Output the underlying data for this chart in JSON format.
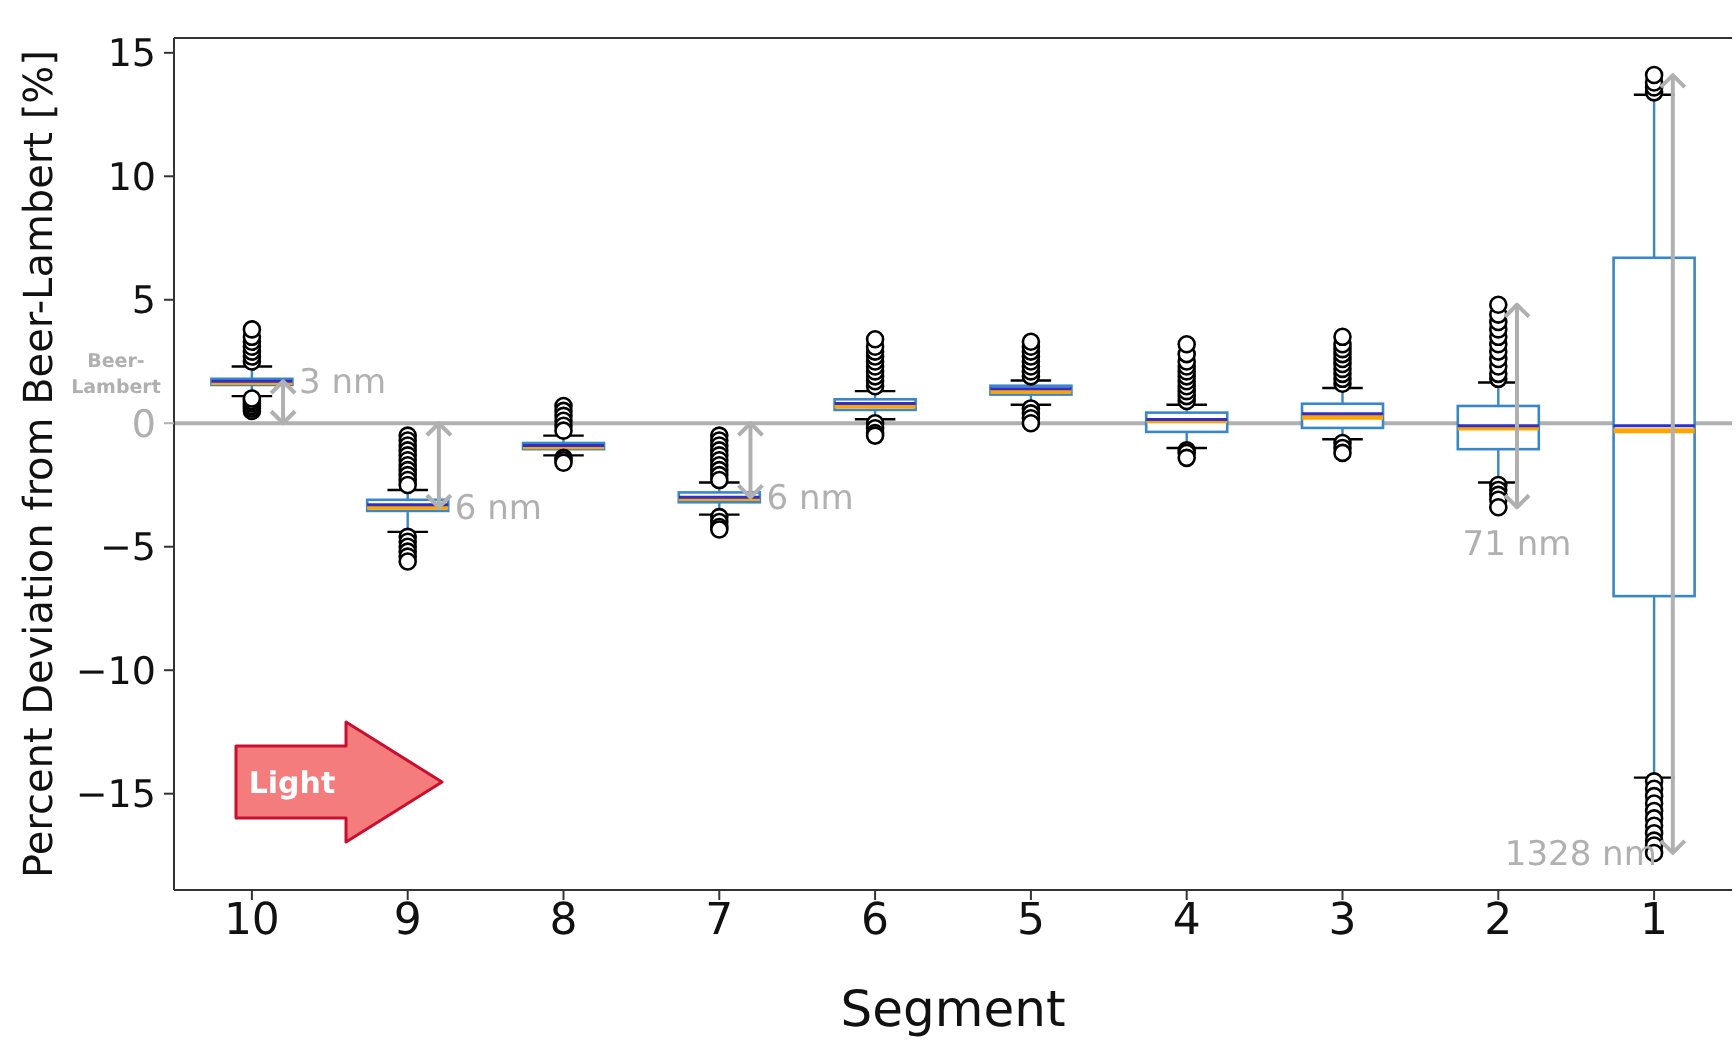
{
  "chart_data": {
    "type": "box",
    "xlabel": "Segment",
    "ylabel": "Percent Deviation from Beer-Lambert [%]",
    "categories": [
      "10",
      "9",
      "8",
      "7",
      "6",
      "5",
      "4",
      "3",
      "2",
      "1"
    ],
    "series": [
      {
        "color": "#3a87c8",
        "boxes": [
          {
            "low": 1.1,
            "q1": 1.55,
            "median": 1.65,
            "q3": 1.8,
            "high": 2.3,
            "mean": 1.7,
            "outliers": [
              0.5,
              0.6,
              0.7,
              0.8,
              0.9,
              1.0,
              2.5,
              2.7,
              2.9,
              3.1,
              3.3,
              3.5,
              3.8
            ]
          },
          {
            "low": -4.4,
            "q1": -3.55,
            "median": -3.4,
            "q3": -3.1,
            "high": -2.7,
            "mean": -3.3,
            "outliers": [
              -0.5,
              -0.7,
              -0.9,
              -1.1,
              -1.3,
              -1.5,
              -1.7,
              -1.9,
              -2.1,
              -2.3,
              -2.5,
              -4.6,
              -4.8,
              -5.0,
              -5.2,
              -5.4,
              -5.6
            ]
          },
          {
            "low": -1.3,
            "q1": -1.05,
            "median": -0.95,
            "q3": -0.8,
            "high": -0.5,
            "mean": -0.9,
            "outliers": [
              0.7,
              0.5,
              0.3,
              0.1,
              -0.1,
              -0.3,
              -1.4,
              -1.5,
              -1.6
            ]
          },
          {
            "low": -3.7,
            "q1": -3.2,
            "median": -3.05,
            "q3": -2.8,
            "high": -2.4,
            "mean": -3.0,
            "outliers": [
              -0.5,
              -0.7,
              -0.9,
              -1.1,
              -1.3,
              -1.5,
              -1.7,
              -1.9,
              -2.1,
              -2.3,
              -3.8,
              -4.0,
              -4.2,
              -4.3
            ]
          },
          {
            "low": 0.16,
            "q1": 0.54,
            "median": 0.7,
            "q3": 0.97,
            "high": 1.3,
            "mean": 0.8,
            "outliers": [
              1.5,
              1.7,
              1.9,
              2.1,
              2.3,
              2.5,
              2.7,
              2.9,
              3.1,
              3.4,
              0,
              -0.2,
              -0.4,
              -0.5
            ]
          },
          {
            "low": 0.75,
            "q1": 1.16,
            "median": 1.3,
            "q3": 1.52,
            "high": 1.73,
            "mean": 1.4,
            "outliers": [
              1.9,
              2.1,
              2.3,
              2.5,
              2.7,
              2.9,
              3.1,
              3.3,
              0.6,
              0.4,
              0.2,
              0
            ]
          },
          {
            "low": -1.0,
            "q1": -0.35,
            "median": 0.1,
            "q3": 0.43,
            "high": 0.75,
            "mean": 0.15,
            "outliers": [
              0.9,
              1.1,
              1.3,
              1.5,
              1.7,
              1.9,
              2.1,
              2.3,
              2.5,
              2.8,
              3.2,
              -1.1,
              -1.2,
              -1.4
            ]
          },
          {
            "low": -0.65,
            "q1": -0.19,
            "median": 0.24,
            "q3": 0.79,
            "high": 1.43,
            "mean": 0.38,
            "outliers": [
              1.6,
              1.8,
              2.0,
              2.2,
              2.4,
              2.6,
              2.8,
              3.0,
              3.2,
              3.5,
              -0.8,
              -1.0,
              -1.2
            ]
          },
          {
            "low": -2.4,
            "q1": -1.05,
            "median": -0.19,
            "q3": 0.7,
            "high": 1.65,
            "mean": -0.1,
            "outliers": [
              1.8,
              2.0,
              2.3,
              2.6,
              2.9,
              3.2,
              3.5,
              3.8,
              4.1,
              4.4,
              4.8,
              -2.5,
              -2.7,
              -2.9,
              -3.1,
              -3.4
            ]
          },
          {
            "low": -14.35,
            "q1": -7.0,
            "median": -0.3,
            "q3": 6.7,
            "high": 13.3,
            "mean": -0.1,
            "outliers": [
              13.4,
              13.6,
              13.8,
              14.1,
              -14.5,
              -14.8,
              -15.1,
              -15.4,
              -15.7,
              -16.0,
              -16.3,
              -16.6,
              -16.9,
              -17.1,
              -17.4
            ]
          }
        ]
      }
    ],
    "ylim": [
      -18.9,
      15.6
    ],
    "yticks": [
      -15,
      -10,
      -5,
      0,
      5,
      10,
      15
    ],
    "ref_lines": [
      {
        "axis": "y",
        "value": 0,
        "label": "Beer-Lambert",
        "color": "#b0b0b0"
      }
    ],
    "annotations": [
      {
        "text": "3 nm",
        "x": "10",
        "y": 1.7
      },
      {
        "text": "6 nm",
        "x": "9",
        "y": -3.4
      },
      {
        "text": "6 nm",
        "x": "7",
        "y": -3.0
      },
      {
        "text": "71 nm",
        "x": "2",
        "y": -2.4
      },
      {
        "text": "1328 nm",
        "x": "1",
        "y": -14.35
      },
      "Light"
    ]
  }
}
